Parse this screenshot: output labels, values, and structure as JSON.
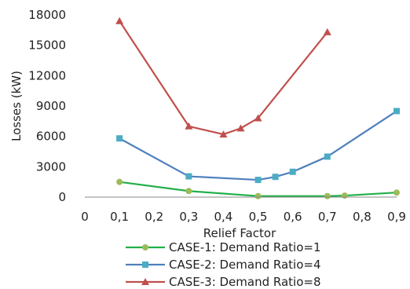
{
  "chart_data": {
    "type": "line",
    "title": "",
    "xlabel": "Relief Factor",
    "ylabel": "Losses (kW)",
    "xlim": [
      0,
      0.9
    ],
    "ylim": [
      0,
      18000
    ],
    "x_ticks": [
      "0",
      "0,1",
      "0,2",
      "0,3",
      "0,4",
      "0,5",
      "0,6",
      "0,7",
      "0,8",
      "0,9"
    ],
    "y_ticks": [
      "0",
      "3000",
      "6000",
      "9000",
      "12000",
      "15000",
      "18000"
    ],
    "grid": false,
    "legend_position": "bottom",
    "series": [
      {
        "name": "CASE-1: Demand Ratio=1",
        "color": "#22b04a",
        "marker": "circle",
        "marker_color": "#9bbb59",
        "x": [
          0.1,
          0.3,
          0.5,
          0.7,
          0.75,
          0.9
        ],
        "y": [
          1500,
          600,
          100,
          100,
          150,
          450
        ]
      },
      {
        "name": "CASE-2: Demand Ratio=4",
        "color": "#4f81bd",
        "marker": "square",
        "marker_color": "#4bacc6",
        "x": [
          0.1,
          0.3,
          0.5,
          0.55,
          0.6,
          0.7,
          0.9
        ],
        "y": [
          5800,
          2050,
          1700,
          2000,
          2500,
          4000,
          8500
        ]
      },
      {
        "name": "CASE-3: Demand Ratio=8",
        "color": "#c0504d",
        "marker": "triangle",
        "marker_color": "#c0504d",
        "x": [
          0.1,
          0.3,
          0.4,
          0.45,
          0.5,
          0.7
        ],
        "y": [
          17400,
          7000,
          6200,
          6800,
          7800,
          16300
        ]
      }
    ]
  }
}
